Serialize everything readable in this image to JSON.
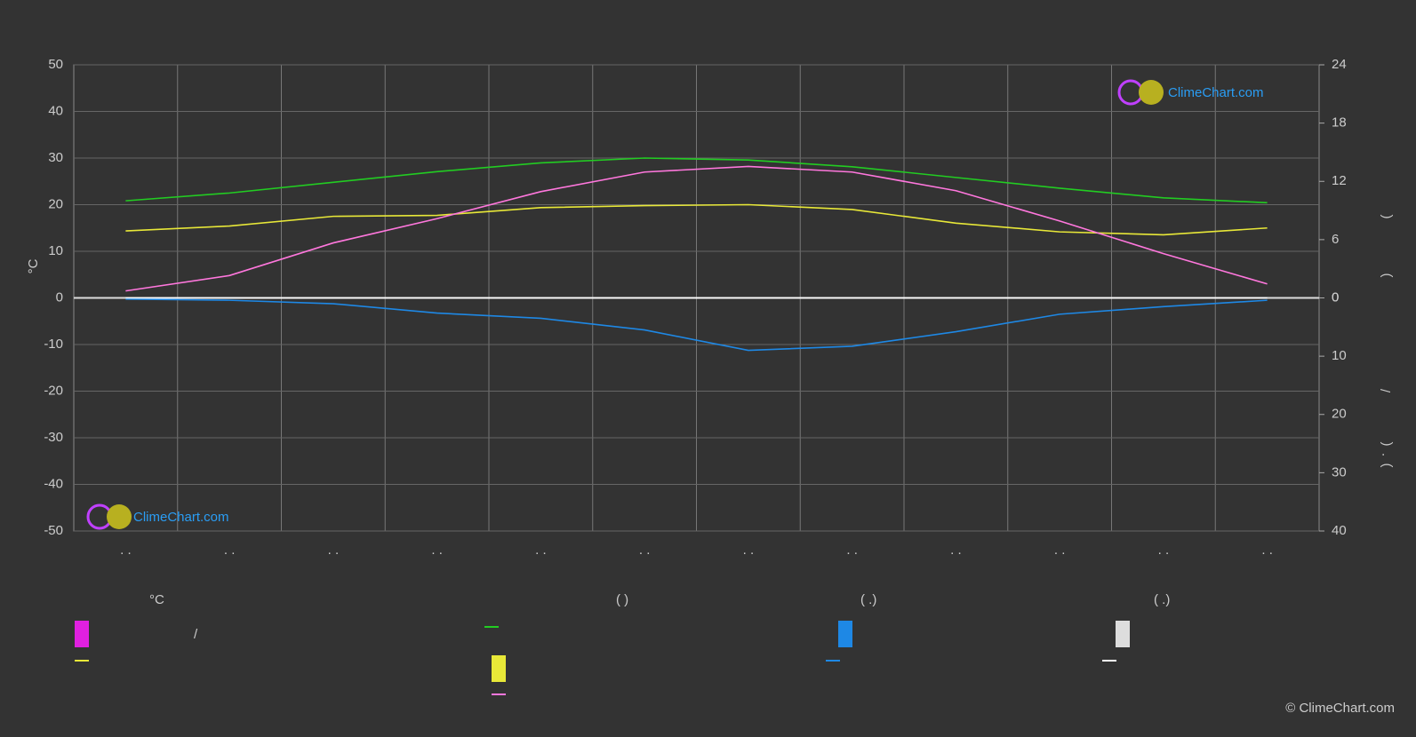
{
  "chart_data": {
    "type": "line",
    "brand": "ClimeChart.com",
    "copyright": "© ClimeChart.com",
    "ylabel": "°C",
    "y2label_parts": [
      "(",
      ")"
    ],
    "y3label_parts": [
      "/",
      "(",
      "·",
      ")"
    ],
    "categories": [
      ". .",
      ". .",
      ". .",
      ". .",
      ". .",
      ". .",
      ". .",
      ". .",
      ". .",
      ". .",
      ". .",
      ". ."
    ],
    "ylim": [
      -50,
      50
    ],
    "yticks": [
      -50,
      -40,
      -30,
      -20,
      -10,
      0,
      10,
      20,
      30,
      40,
      50
    ],
    "y2lim": [
      0,
      24
    ],
    "y2ticks": [
      0,
      6,
      12,
      18,
      24
    ],
    "y3lim": [
      0,
      40
    ],
    "y3ticks": [
      0,
      10,
      20,
      30,
      40
    ],
    "grid": true,
    "series": [
      {
        "name": "—",
        "color": "#22cc22",
        "axis": "y2",
        "values": [
          10.0,
          10.8,
          11.9,
          13.0,
          13.9,
          14.4,
          14.2,
          13.5,
          12.4,
          11.3,
          10.3,
          9.8
        ]
      },
      {
        "name": "—",
        "color": "#e8e838",
        "axis": "y2",
        "values": [
          6.9,
          7.4,
          8.4,
          8.5,
          9.3,
          9.5,
          9.6,
          9.1,
          7.7,
          6.8,
          6.5,
          7.2
        ]
      },
      {
        "name": "—",
        "color": "#ff77dd",
        "axis": "y",
        "values": [
          1.5,
          4.8,
          11.8,
          17.0,
          22.8,
          27.0,
          28.2,
          27.0,
          23.0,
          16.5,
          9.5,
          3.0
        ]
      },
      {
        "name": "—",
        "color": "#1e88e5",
        "axis": "y3",
        "values": [
          0.2,
          0.4,
          1.0,
          2.6,
          3.5,
          5.5,
          9.0,
          8.3,
          5.8,
          2.8,
          1.5,
          0.4
        ]
      },
      {
        "name": "—",
        "color": "#ffffff",
        "axis": "y3",
        "values": [
          0,
          0,
          0,
          0,
          0,
          0,
          0,
          0,
          0,
          0,
          0,
          0
        ]
      }
    ],
    "legend_headers": [
      "°C",
      "(          )",
      "(   .)",
      "(   .)"
    ],
    "legend_slash": "/"
  }
}
